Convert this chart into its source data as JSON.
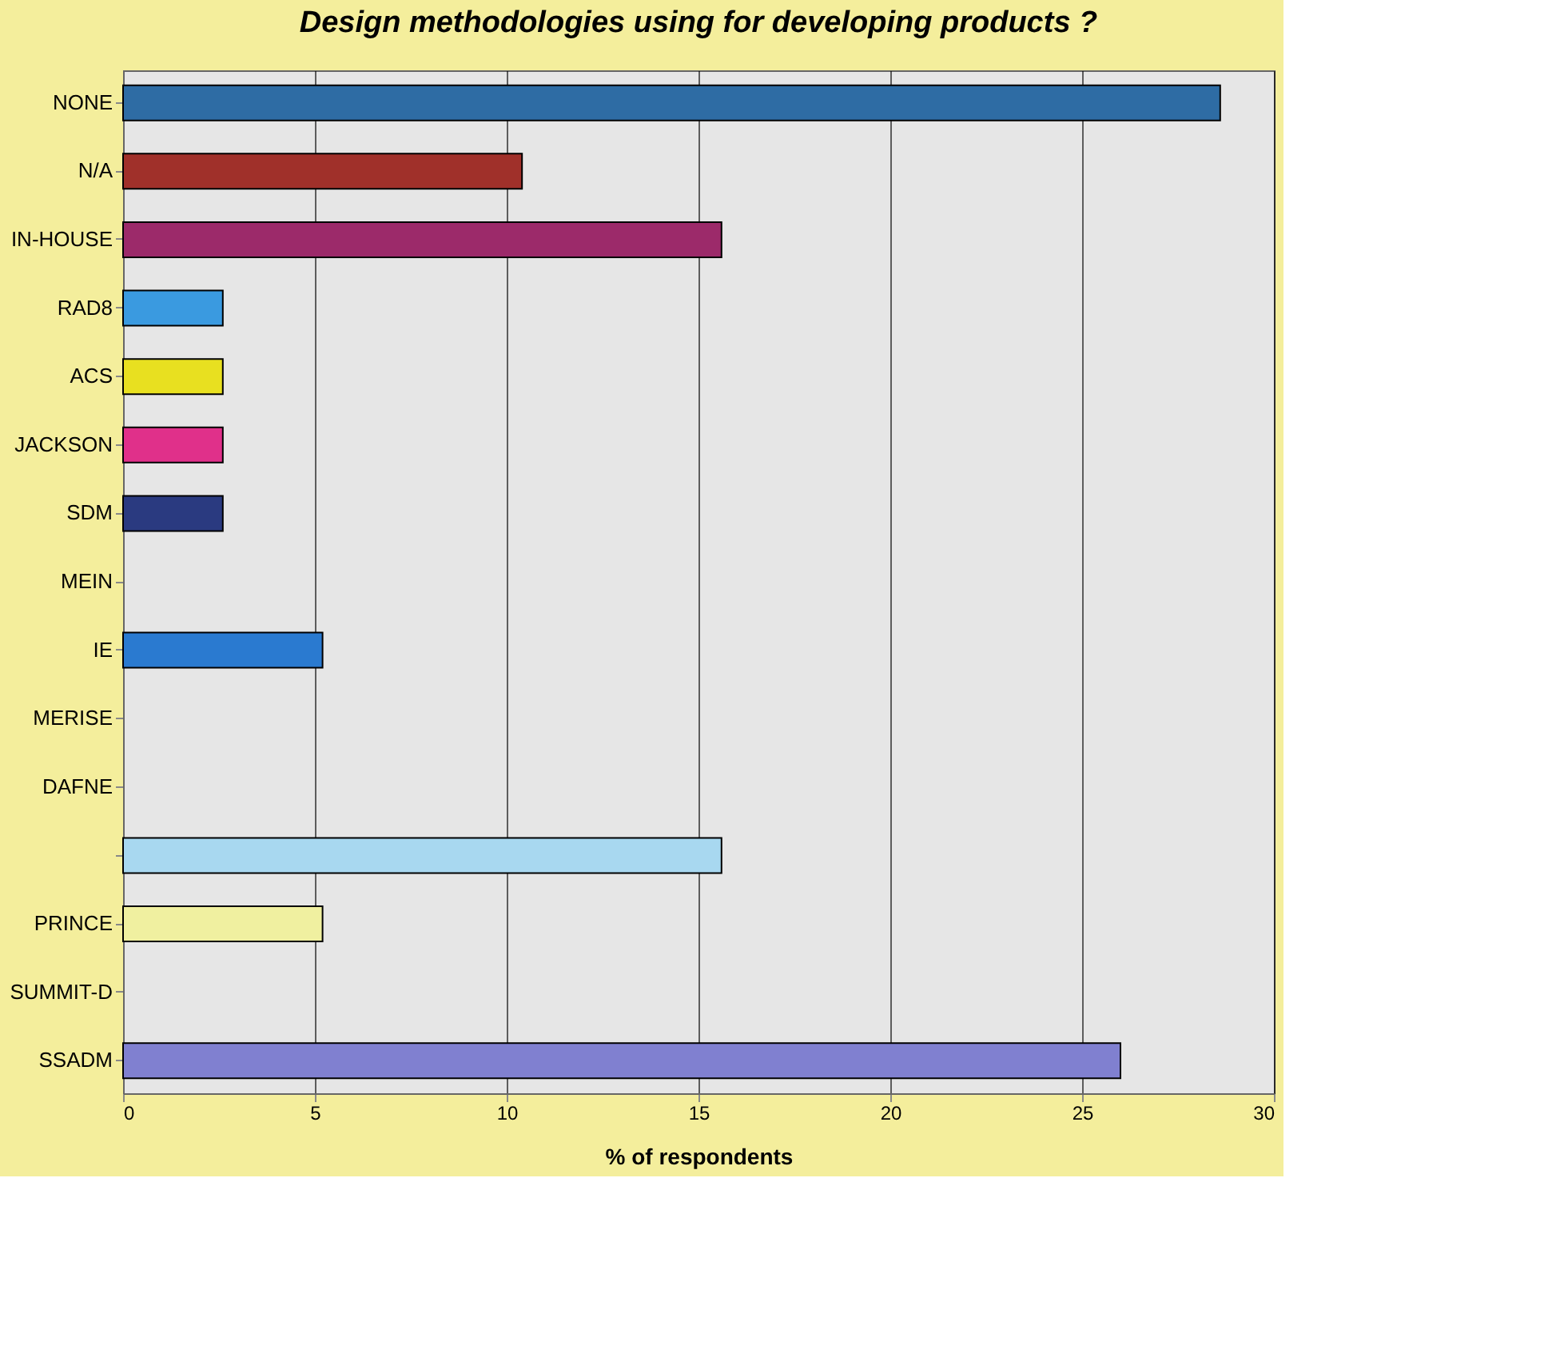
{
  "chart_data": {
    "type": "bar",
    "orientation": "horizontal",
    "title": "Design methodologies using for developing products ?",
    "xlabel": "% of respondents",
    "categories": [
      "NONE",
      "N/A",
      "IN-HOUSE",
      "RAD8",
      "ACS",
      "JACKSON",
      "SDM",
      "MEIN",
      "IE",
      "MERISE",
      "DAFNE",
      null,
      "PRINCE",
      "SUMMIT-D",
      "SSADM"
    ],
    "values": [
      28.6,
      10.4,
      15.6,
      2.6,
      2.6,
      2.6,
      2.6,
      0,
      5.2,
      0,
      0,
      15.6,
      5.2,
      0,
      26.0
    ],
    "colors": [
      "#2e6ca4",
      "#a0302a",
      "#9c2a6a",
      "#3a9ae0",
      "#e8e020",
      "#e0308a",
      "#2a3a80",
      null,
      "#2a7ad0",
      null,
      null,
      "#a8d8f0",
      "#f0f0a0",
      null,
      "#8080d0"
    ],
    "xlim": [
      0,
      30
    ],
    "xticks": [
      0,
      5,
      10,
      15,
      20,
      25,
      30
    ],
    "grid": "x"
  }
}
